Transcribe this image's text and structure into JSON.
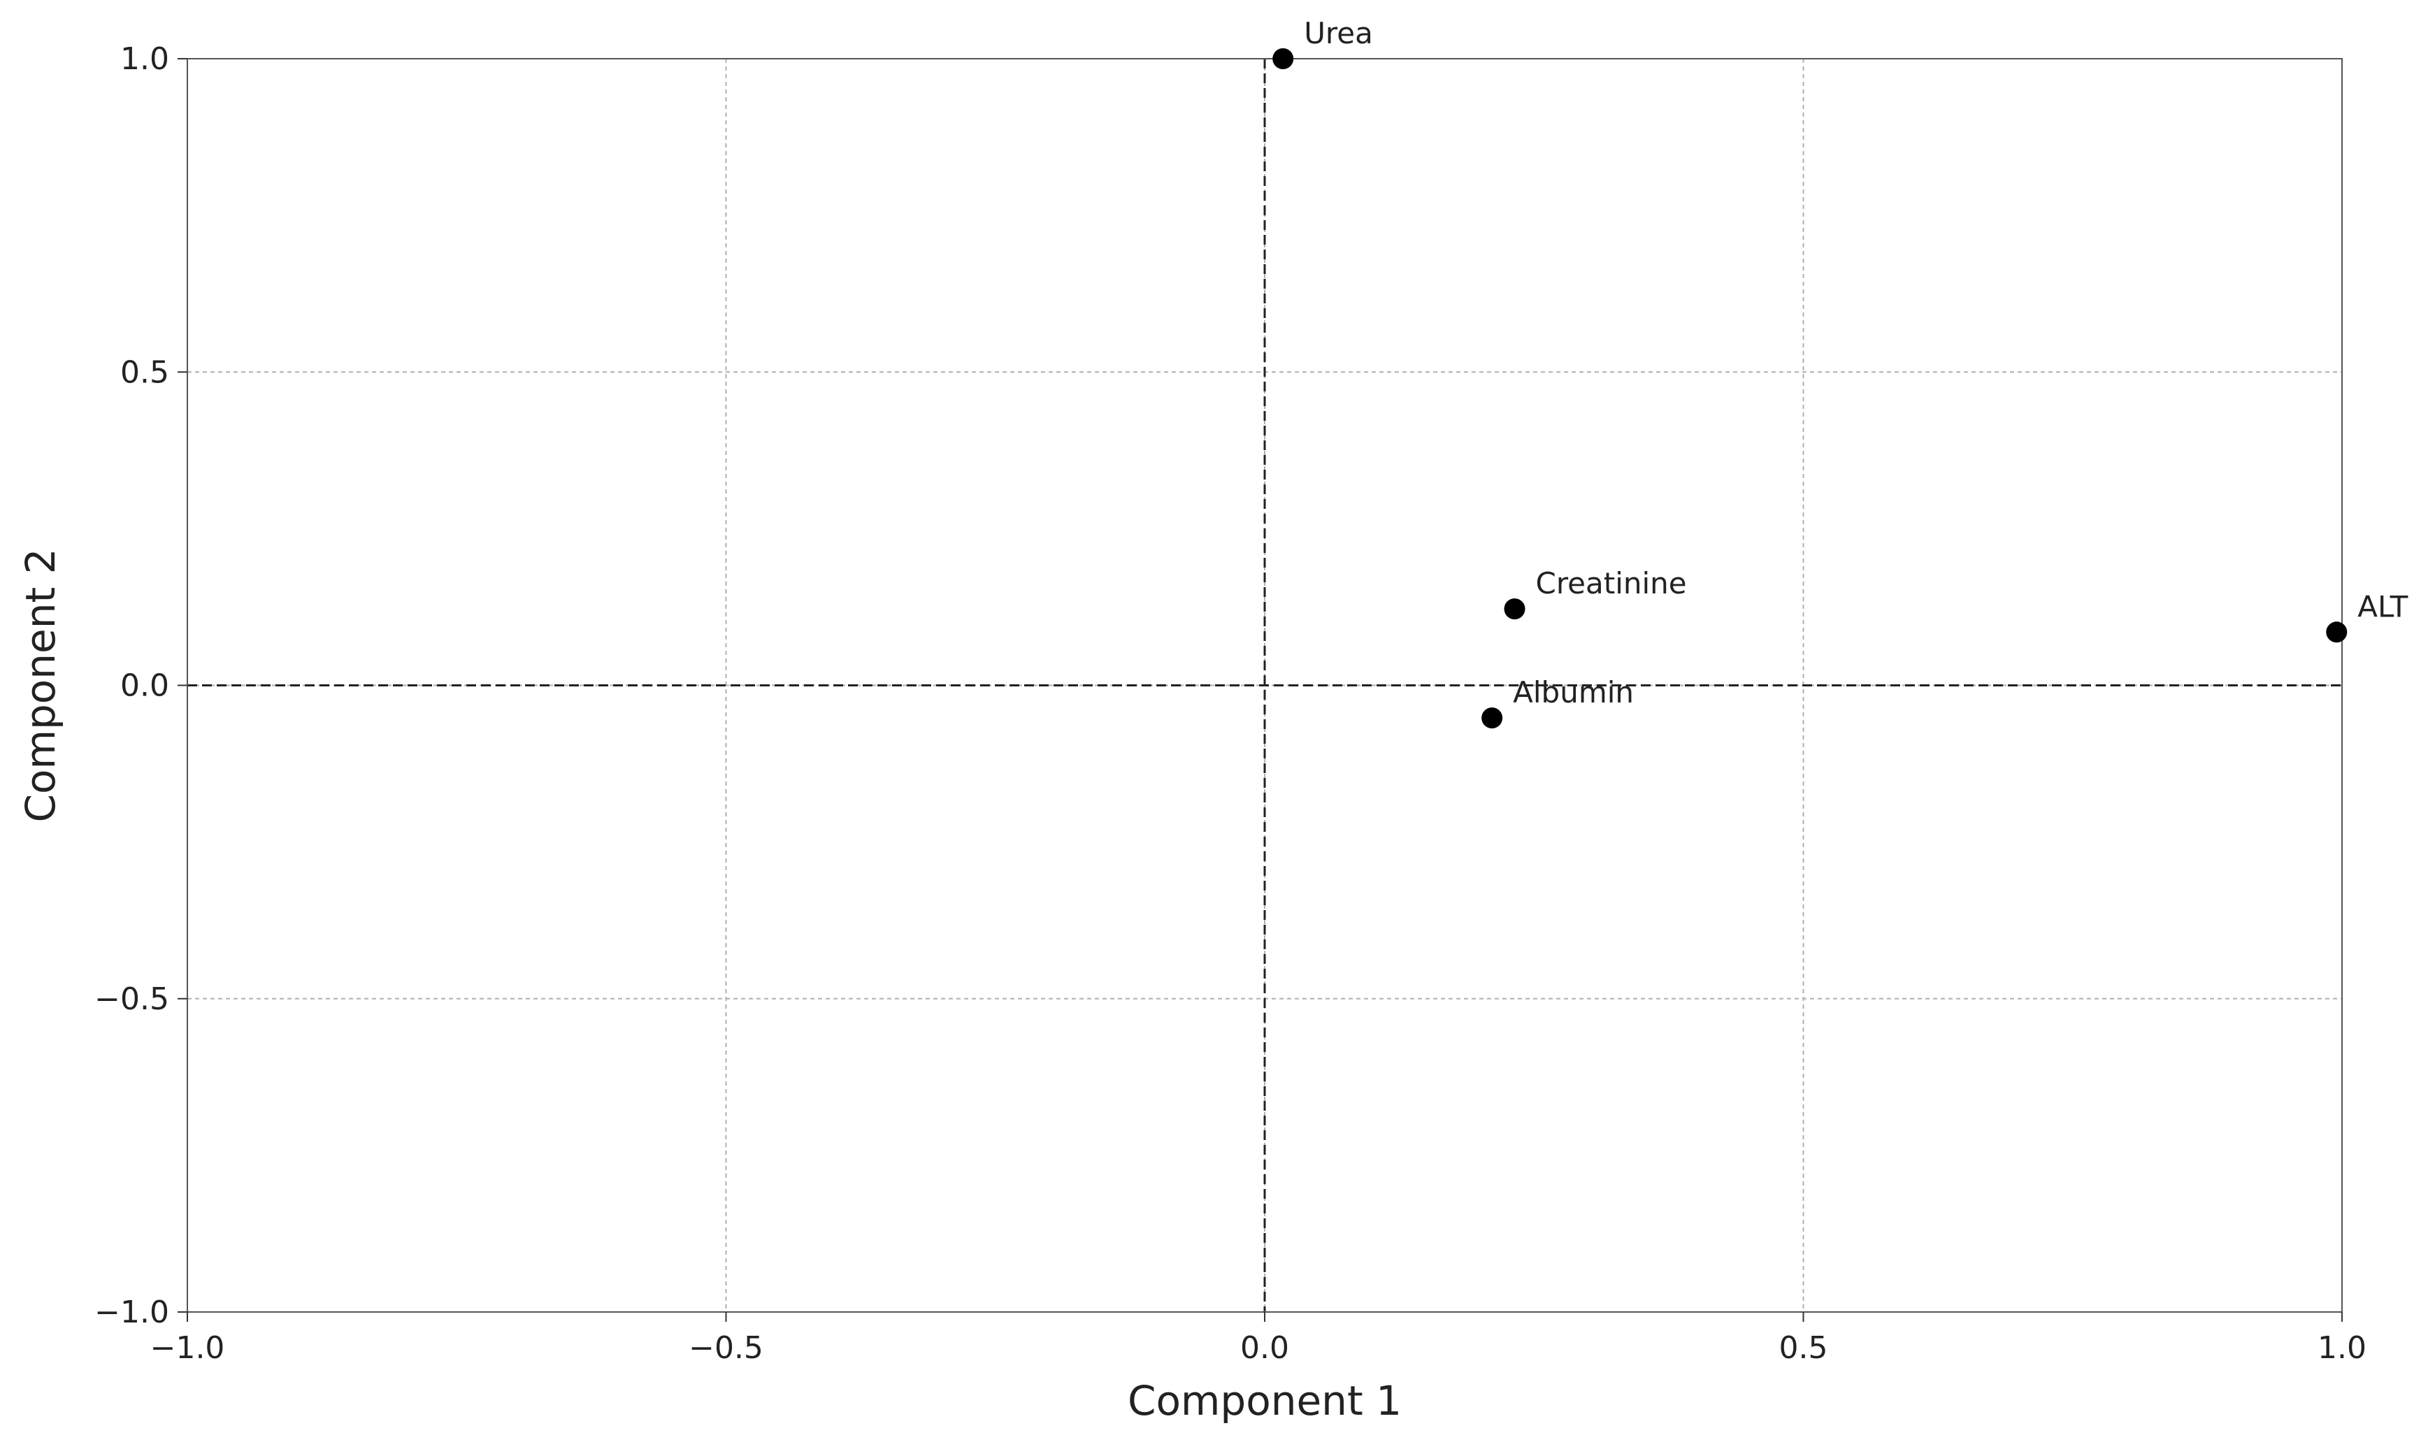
{
  "chart_data": {
    "type": "scatter",
    "xlabel": "Component 1",
    "ylabel": "Component 2",
    "xlim": [
      -1.0,
      1.0
    ],
    "ylim": [
      -1.0,
      1.0
    ],
    "x_ticks": [
      "−1.0",
      "−0.5",
      "0.0",
      "0.5",
      "1.0"
    ],
    "y_ticks": [
      "−1.0",
      "−0.5",
      "0.0",
      "0.5",
      "1.0"
    ],
    "grid": true,
    "reference_lines": {
      "x": 0,
      "y": 0,
      "style": "dashed"
    },
    "marker_color": "#000000",
    "grid_color": "#b0b0b0",
    "points": [
      {
        "label": "Urea",
        "x": 0.017,
        "y": 1.0
      },
      {
        "label": "Creatinine",
        "x": 0.232,
        "y": 0.122
      },
      {
        "label": "ALT",
        "x": 0.995,
        "y": 0.085
      },
      {
        "label": "Albumin",
        "x": 0.211,
        "y": -0.052
      }
    ]
  }
}
